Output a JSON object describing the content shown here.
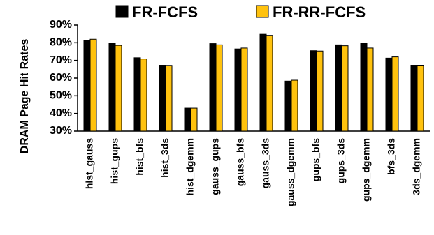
{
  "chart_data": {
    "type": "bar",
    "ylabel": "DRAM Page Hit Rates",
    "ylim": [
      30,
      90
    ],
    "yticks": [
      "30%",
      "40%",
      "50%",
      "60%",
      "70%",
      "80%",
      "90%"
    ],
    "ytick_values": [
      30,
      40,
      50,
      60,
      70,
      80,
      90
    ],
    "grid": false,
    "legend_position": "top",
    "categories": [
      "hist_gauss",
      "hist_gups",
      "hist_bfs",
      "hist_3ds",
      "hist_dgemm",
      "gauss_gups",
      "gauss_bfs",
      "gauss_3ds",
      "gauss_dgemm",
      "gups_bfs",
      "gups_3ds",
      "gups_dgemm",
      "bfs_3ds",
      "3ds_dgemm"
    ],
    "series": [
      {
        "name": "FR-FCFS",
        "color": "#000000",
        "values": [
          81.5,
          79.8,
          71.5,
          67.3,
          43.0,
          79.5,
          76.5,
          84.8,
          58.3,
          75.5,
          78.8,
          79.8,
          71.3,
          67.3
        ]
      },
      {
        "name": "FR-RR-FCFS",
        "color": "#FFC20E",
        "values": [
          82.0,
          78.5,
          70.8,
          67.2,
          43.0,
          78.8,
          77.0,
          84.2,
          58.8,
          75.3,
          78.3,
          77.0,
          72.0,
          67.3
        ]
      }
    ]
  }
}
